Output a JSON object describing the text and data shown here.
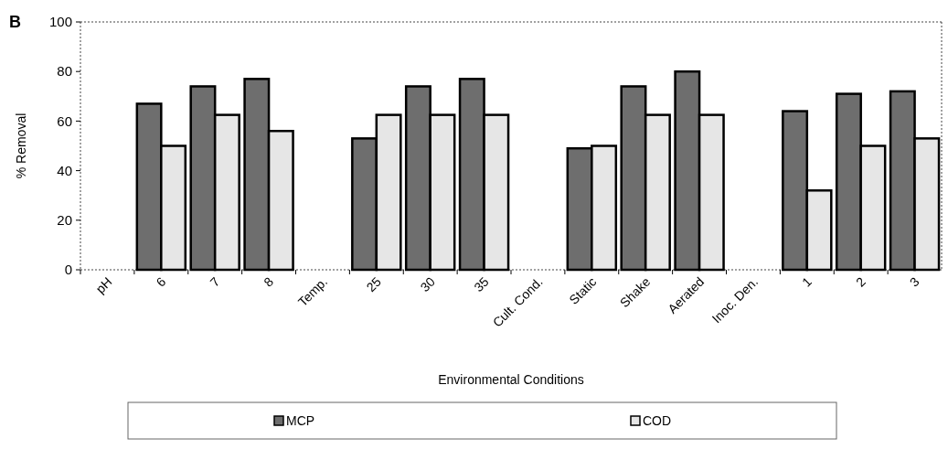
{
  "chart_data": {
    "type": "bar",
    "xlabel": "Environmental Conditions",
    "ylabel": "% Removal",
    "annotations": [
      "B"
    ],
    "categories": [
      "pH",
      "6",
      "7",
      "8",
      "Temp.",
      "25",
      "30",
      "35",
      "Cult. Cond.",
      "Static",
      "Shake",
      "Aerated",
      "Inoc. Den.",
      "1",
      "2",
      "3"
    ],
    "series": [
      {
        "name": "MCP",
        "color": "#6e6e6e",
        "values": [
          null,
          67,
          74,
          77,
          null,
          53,
          74,
          77,
          null,
          49,
          74,
          80,
          null,
          64,
          71,
          72
        ]
      },
      {
        "name": "COD",
        "color": "#e6e6e6",
        "values": [
          null,
          50,
          62.5,
          56,
          null,
          62.5,
          62.5,
          62.5,
          null,
          50,
          62.5,
          62.5,
          null,
          32,
          50,
          53
        ]
      }
    ],
    "ylim": [
      0,
      100
    ],
    "yticks": [
      0,
      20,
      40,
      60,
      80,
      100
    ],
    "grid": false,
    "legend": "bottom"
  }
}
